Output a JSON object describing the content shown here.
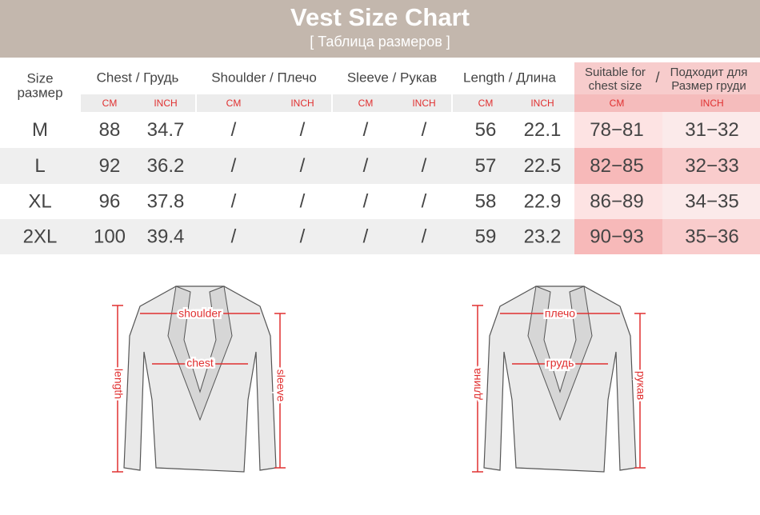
{
  "header": {
    "title": "Vest Size Chart",
    "subtitle": "[ Таблица размеров ]"
  },
  "table": {
    "size_header": [
      "Size",
      "размер"
    ],
    "columns": [
      "Chest / Грудь",
      "Shoulder / Плечо",
      "Sleeve / Рукав",
      "Length / Длина"
    ],
    "suitable_header": {
      "en": [
        "Suitable for",
        "chest size"
      ],
      "sep": "/",
      "ru": [
        "Подходит для",
        "Размер груди"
      ]
    },
    "units": [
      "CM",
      "INCH",
      "CM",
      "INCH",
      "CM",
      "INCH",
      "CM",
      "INCH",
      "CM",
      "INCH"
    ],
    "rows": [
      [
        "M",
        88,
        34.7,
        "/",
        "/",
        "/",
        "/",
        56,
        22.1,
        "78−81",
        "31−32"
      ],
      [
        "L",
        92,
        36.2,
        "/",
        "/",
        "/",
        "/",
        57,
        22.5,
        "82−85",
        "32−33"
      ],
      [
        "XL",
        96,
        37.8,
        "/",
        "/",
        "/",
        "/",
        58,
        22.9,
        "86−89",
        "34−35"
      ],
      [
        "2XL",
        100,
        39.4,
        "/",
        "/",
        "/",
        "/",
        59,
        23.2,
        "90−93",
        "35−36"
      ]
    ]
  },
  "diagrams": [
    {
      "shoulder": "shoulder",
      "chest": "chest",
      "length": "length",
      "sleeve": "sleeve"
    },
    {
      "shoulder": "плечо",
      "chest": "грудь",
      "length": "длина",
      "sleeve": "рукав"
    }
  ]
}
